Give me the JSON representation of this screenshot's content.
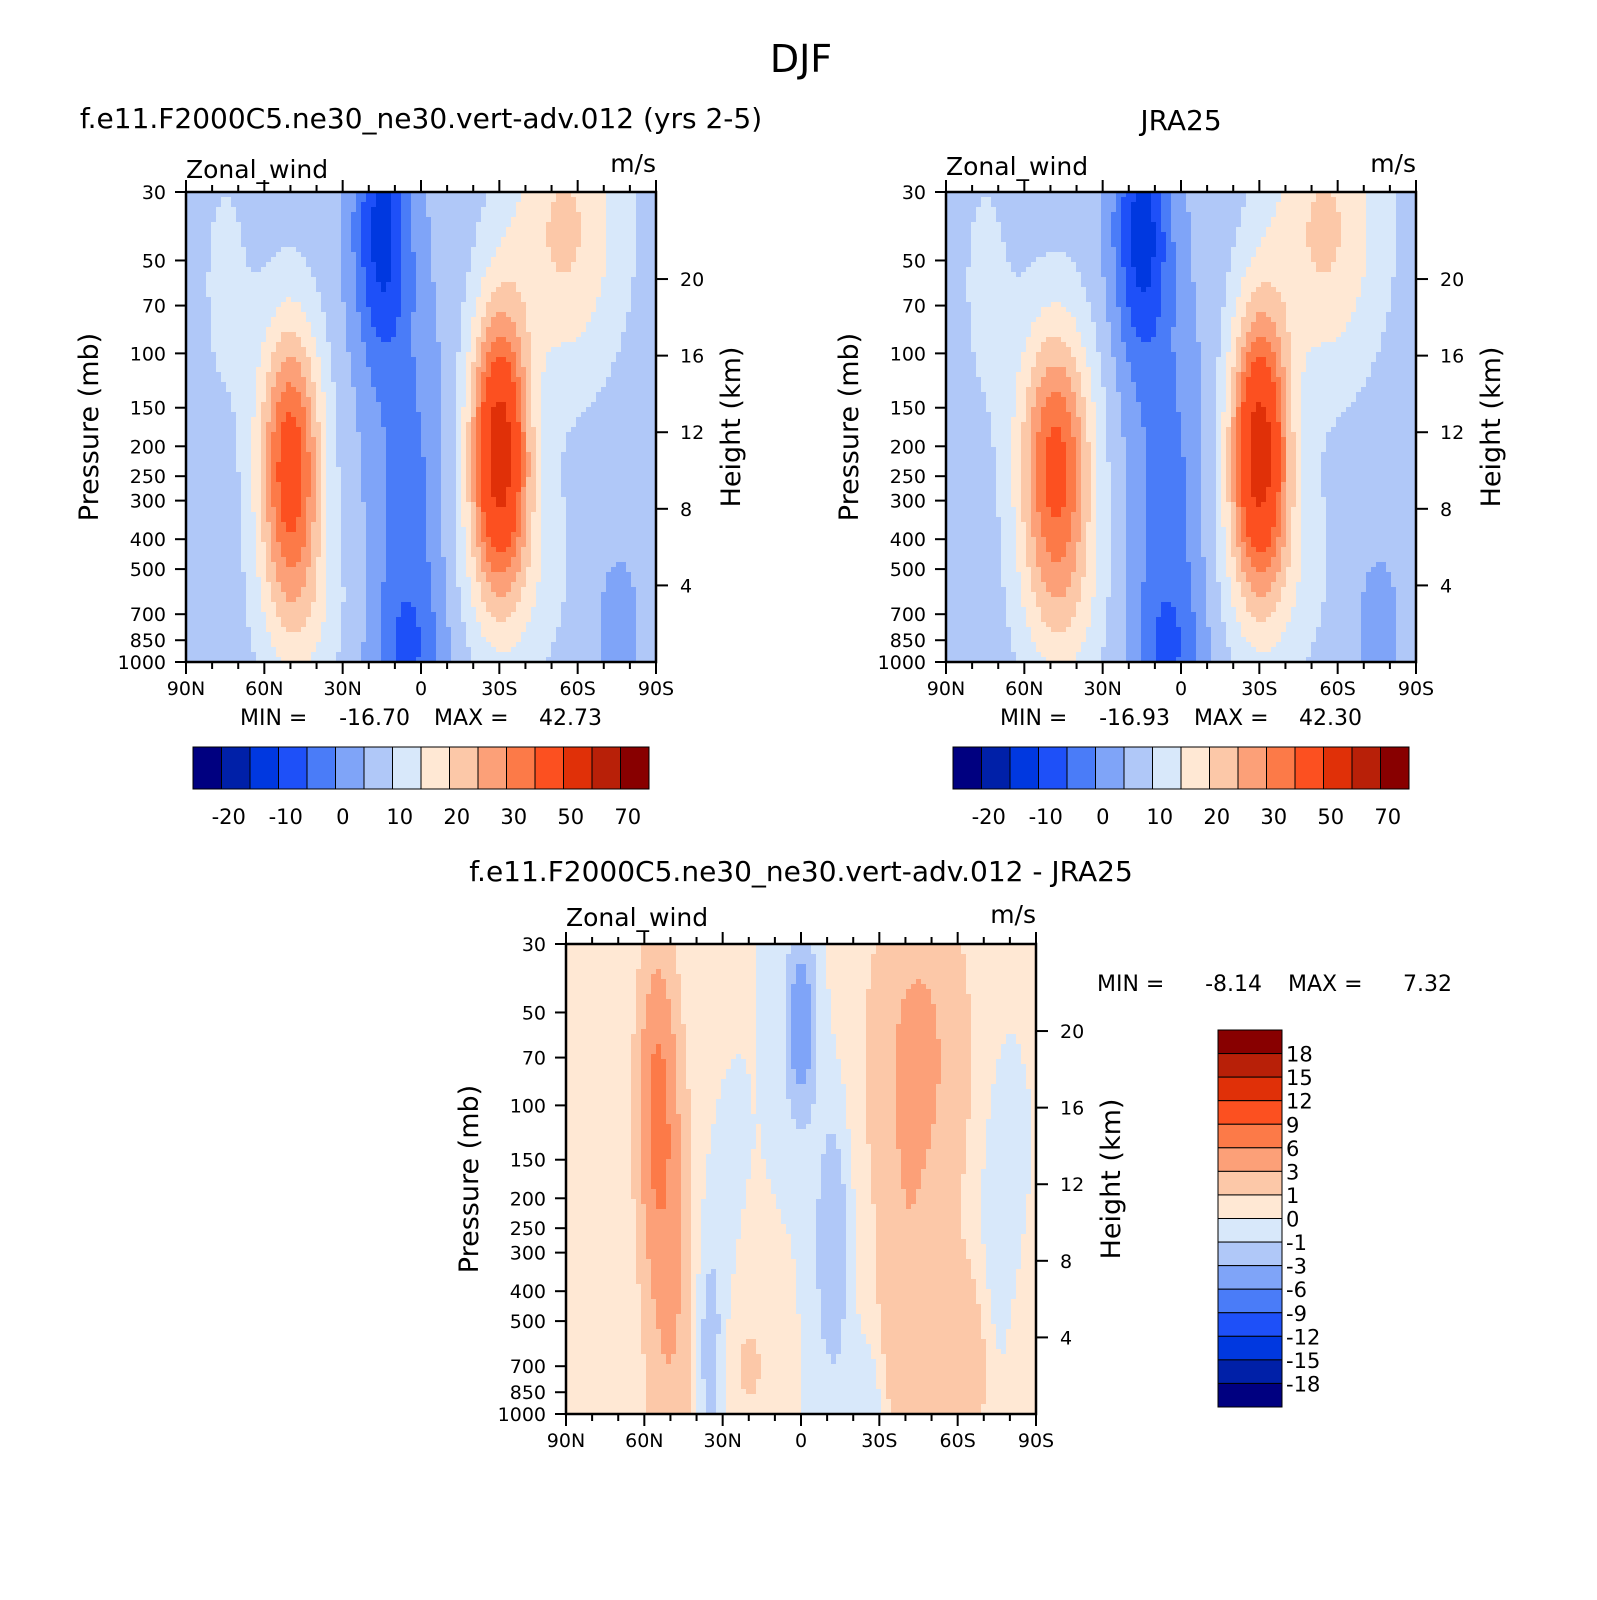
{
  "figure": {
    "title": "DJF"
  },
  "colors": {
    "abs_levels": [
      "#000080",
      "#0020a8",
      "#0038e0",
      "#1e50f8",
      "#4a7cf8",
      "#7fa4f8",
      "#b0c8f8",
      "#d8e8fa",
      "#ffe8d4",
      "#fcc8a8",
      "#fca078",
      "#fc7a48",
      "#fc5020",
      "#e03008",
      "#b82008",
      "#880000"
    ],
    "diff_levels": [
      "#000080",
      "#0020a8",
      "#0038e0",
      "#1e50f8",
      "#4a7cf8",
      "#7fa4f8",
      "#b0c8f8",
      "#d8e8fa",
      "#ffe8d4",
      "#fcc8a8",
      "#fca078",
      "#fc7a48",
      "#fc5020",
      "#e03008",
      "#b82008",
      "#880000"
    ]
  },
  "chart_data": [
    {
      "type": "heatmap",
      "title": "f.e11.F2000C5.ne30_ne30.vert-adv.012 (yrs 2-5)",
      "subtitle_left": "Zonal_wind",
      "subtitle_right": "m/s",
      "xlabel": "",
      "ylabel": "Pressure (mb)",
      "ylabel_right": "Height (km)",
      "x_ticks": [
        "90N",
        "60N",
        "30N",
        "0",
        "30S",
        "60S",
        "90S"
      ],
      "y_ticks": [
        "30",
        "50",
        "70",
        "100",
        "150",
        "200",
        "250",
        "300",
        "400",
        "500",
        "700",
        "850",
        "1000"
      ],
      "y_ticks_right": [
        "20",
        "16",
        "12",
        "8",
        "4"
      ],
      "ylim": [
        1000,
        30
      ],
      "y_scale": "log",
      "stats": {
        "min_label": "MIN =",
        "min": "-16.70",
        "max_label": "MAX =",
        "max": "42.73"
      },
      "colorbar_labels": [
        "-20",
        "-10",
        "0",
        "10",
        "20",
        "30",
        "50",
        "70"
      ],
      "jets": [
        {
          "lat": -30,
          "p": 200,
          "speed": 42.73
        },
        {
          "lat": 50,
          "p": 230,
          "speed": 34
        }
      ],
      "easterly_min": {
        "lat": 15,
        "p": 40,
        "speed": -16.7
      }
    },
    {
      "type": "heatmap",
      "title": "JRA25",
      "subtitle_left": "Zonal_wind",
      "subtitle_right": "m/s",
      "xlabel": "",
      "ylabel": "Pressure (mb)",
      "ylabel_right": "Height (km)",
      "x_ticks": [
        "90N",
        "60N",
        "30N",
        "0",
        "30S",
        "60S",
        "90S"
      ],
      "y_ticks": [
        "30",
        "50",
        "70",
        "100",
        "150",
        "200",
        "250",
        "300",
        "400",
        "500",
        "700",
        "850",
        "1000"
      ],
      "y_ticks_right": [
        "20",
        "16",
        "12",
        "8",
        "4"
      ],
      "ylim": [
        1000,
        30
      ],
      "y_scale": "log",
      "stats": {
        "min_label": "MIN =",
        "min": "-16.93",
        "max_label": "MAX =",
        "max": "42.30"
      },
      "colorbar_labels": [
        "-20",
        "-10",
        "0",
        "10",
        "20",
        "30",
        "50",
        "70"
      ],
      "jets": [
        {
          "lat": -30,
          "p": 200,
          "speed": 42.3
        },
        {
          "lat": 48,
          "p": 230,
          "speed": 32
        }
      ],
      "easterly_min": {
        "lat": 15,
        "p": 40,
        "speed": -16.93
      }
    },
    {
      "type": "heatmap",
      "title": "f.e11.F2000C5.ne30_ne30.vert-adv.012 - JRA25",
      "subtitle_left": "Zonal_wind",
      "subtitle_right": "m/s",
      "xlabel": "",
      "ylabel": "Pressure (mb)",
      "ylabel_right": "Height (km)",
      "x_ticks": [
        "90N",
        "60N",
        "30N",
        "0",
        "30S",
        "60S",
        "90S"
      ],
      "y_ticks": [
        "30",
        "50",
        "70",
        "100",
        "150",
        "200",
        "250",
        "300",
        "400",
        "500",
        "700",
        "850",
        "1000"
      ],
      "y_ticks_right": [
        "20",
        "16",
        "12",
        "8",
        "4"
      ],
      "ylim": [
        1000,
        30
      ],
      "y_scale": "log",
      "stats": {
        "min_label": "MIN =",
        "min": "-8.14",
        "max_label": "MAX =",
        "max": "7.32"
      },
      "colorbar_labels": [
        "18",
        "15",
        "12",
        "9",
        "6",
        "3",
        "1",
        "0",
        "-1",
        "-3",
        "-6",
        "-9",
        "-12",
        "-15",
        "-18"
      ]
    }
  ]
}
